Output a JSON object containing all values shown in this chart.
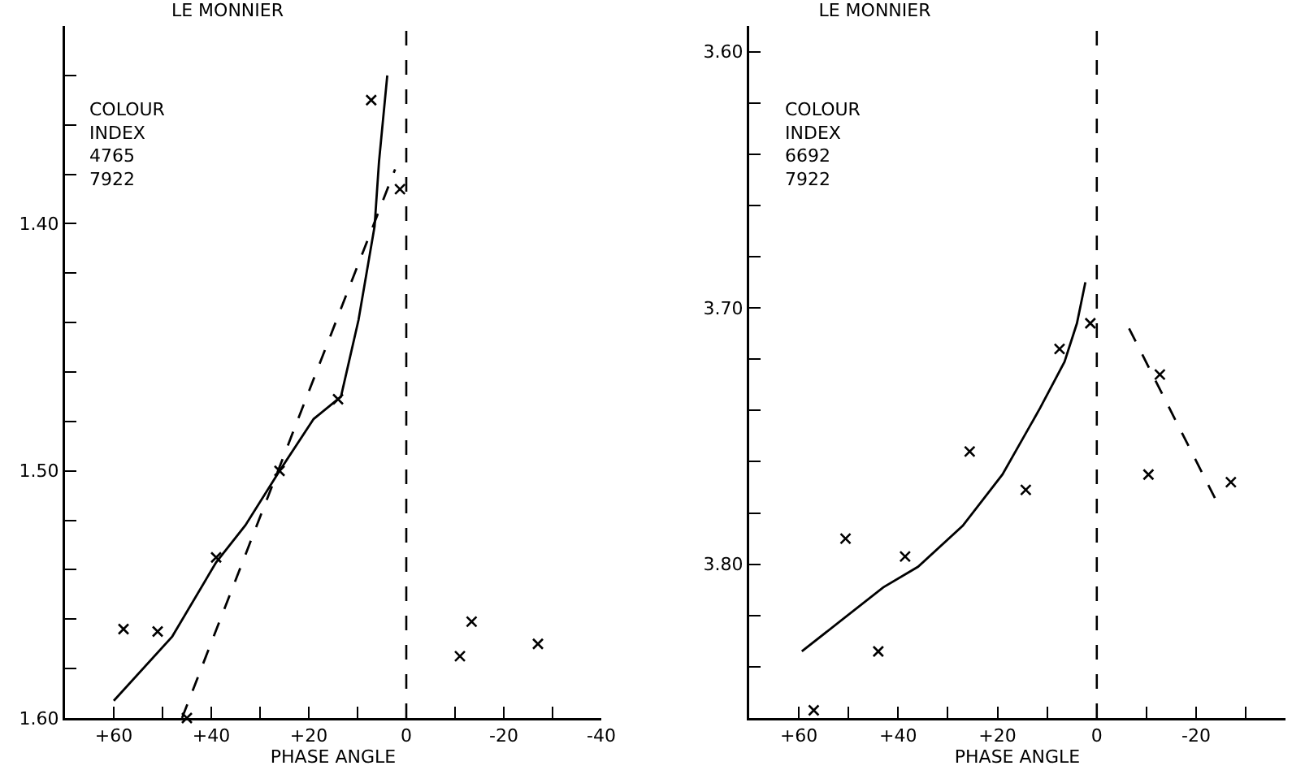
{
  "chart_data": [
    {
      "type": "scatter",
      "title": "LE MONNIER",
      "xlabel": "PHASE ANGLE",
      "annotations": [
        "COLOUR\nINDEX\n4765\n7922"
      ],
      "xlim": [
        70,
        -40
      ],
      "xticks": [
        {
          "value": 60,
          "label": "+60"
        },
        {
          "value": 50,
          "label": null
        },
        {
          "value": 40,
          "label": "+40"
        },
        {
          "value": 30,
          "label": null
        },
        {
          "value": 20,
          "label": "+20"
        },
        {
          "value": 10,
          "label": null
        },
        0,
        {
          "value": -10,
          "label": null
        },
        -20,
        {
          "value": -30,
          "label": null
        },
        -40
      ],
      "ylim": [
        1.6,
        1.32
      ],
      "yticks": [
        {
          "value": 1.34,
          "label": null
        },
        {
          "value": 1.36,
          "label": null
        },
        {
          "value": 1.38,
          "label": null
        },
        {
          "value": 1.4,
          "label": "1.40"
        },
        {
          "value": 1.42,
          "label": null
        },
        {
          "value": 1.44,
          "label": null
        },
        {
          "value": 1.46,
          "label": null
        },
        {
          "value": 1.48,
          "label": null
        },
        {
          "value": 1.5,
          "label": "1.50"
        },
        {
          "value": 1.52,
          "label": null
        },
        {
          "value": 1.54,
          "label": null
        },
        {
          "value": 1.56,
          "label": null
        },
        {
          "value": 1.58,
          "label": null
        },
        {
          "value": 1.6,
          "label": "1.60"
        }
      ],
      "grid": false,
      "ref_lines": [
        {
          "axis": "x",
          "value": 0,
          "label": null,
          "color": "#000000",
          "line_style": "dashed"
        }
      ],
      "series": [
        {
          "type": "scatter",
          "marker": "cross",
          "color": "#000000",
          "x": [
            7.2,
            1.3,
            14,
            26,
            39,
            58,
            51,
            45,
            -11,
            -13.4,
            -27
          ],
          "values": [
            1.35,
            1.386,
            1.471,
            1.5,
            1.535,
            1.564,
            1.565,
            1.6,
            1.575,
            1.561,
            1.57
          ]
        },
        {
          "type": "line",
          "line_style": "solid",
          "marker": "none",
          "color": "#000000",
          "x": [
            60,
            48,
            39,
            33,
            26,
            19,
            13.4,
            9.8,
            6.5,
            5.6,
            3.9
          ],
          "values": [
            1.593,
            1.567,
            1.537,
            1.522,
            1.5,
            1.479,
            1.47,
            1.439,
            1.401,
            1.375,
            1.34
          ]
        },
        {
          "type": "line",
          "line_style": "dashed",
          "marker": "none",
          "color": "#000000",
          "x": [
            46,
            2.3
          ],
          "values": [
            1.6,
            1.378
          ]
        }
      ]
    },
    {
      "type": "scatter",
      "title": "LE MONNIER",
      "xlabel": "PHASE ANGLE",
      "annotations": [
        "COLOUR\nINDEX\n6692\n7922"
      ],
      "xlim": [
        70,
        -38
      ],
      "xticks": [
        {
          "value": 60,
          "label": "+60"
        },
        {
          "value": 50,
          "label": null
        },
        {
          "value": 40,
          "label": "+40"
        },
        {
          "value": 30,
          "label": null
        },
        {
          "value": 20,
          "label": "+20"
        },
        {
          "value": 10,
          "label": null
        },
        0,
        {
          "value": -10,
          "label": null
        },
        -20,
        {
          "value": -30,
          "label": null
        }
      ],
      "ylim": [
        3.86,
        3.59
      ],
      "yticks": [
        {
          "value": 3.6,
          "label": "3.60"
        },
        {
          "value": 3.62,
          "label": null
        },
        {
          "value": 3.64,
          "label": null
        },
        {
          "value": 3.66,
          "label": null
        },
        {
          "value": 3.68,
          "label": null
        },
        {
          "value": 3.7,
          "label": "3.70"
        },
        {
          "value": 3.72,
          "label": null
        },
        {
          "value": 3.74,
          "label": null
        },
        {
          "value": 3.76,
          "label": null
        },
        {
          "value": 3.78,
          "label": null
        },
        {
          "value": 3.8,
          "label": "3.80"
        },
        {
          "value": 3.82,
          "label": null
        },
        {
          "value": 3.84,
          "label": null
        }
      ],
      "grid": false,
      "ref_lines": [
        {
          "axis": "x",
          "value": 0,
          "label": null,
          "color": "#000000",
          "line_style": "dashed"
        }
      ],
      "series": [
        {
          "type": "scatter",
          "marker": "cross",
          "color": "#000000",
          "x": [
            7.5,
            1.3,
            -12.7,
            25.6,
            14.3,
            -10.4,
            -27,
            50.6,
            38.6,
            44,
            57
          ],
          "values": [
            3.716,
            3.706,
            3.726,
            3.756,
            3.771,
            3.765,
            3.768,
            3.79,
            3.797,
            3.834,
            3.857
          ]
        },
        {
          "type": "line",
          "line_style": "solid",
          "marker": "none",
          "color": "#000000",
          "x": [
            59.4,
            43,
            36,
            27,
            19,
            11.4,
            6.5,
            4,
            2.3
          ],
          "values": [
            3.834,
            3.809,
            3.801,
            3.785,
            3.765,
            3.739,
            3.721,
            3.706,
            3.69
          ]
        },
        {
          "type": "line",
          "line_style": "dashed",
          "marker": "none",
          "color": "#000000",
          "x": [
            -6.5,
            -24
          ],
          "values": [
            3.708,
            3.775
          ]
        }
      ]
    }
  ]
}
